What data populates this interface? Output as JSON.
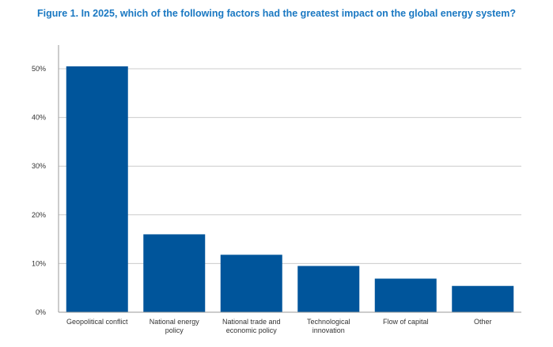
{
  "chart_data": {
    "type": "bar",
    "title": "Figure 1. In 2025, which of the following factors had the greatest impact on the global energy system?",
    "categories": [
      [
        "Geopolitical conflict"
      ],
      [
        "National energy",
        "policy"
      ],
      [
        "National trade and",
        "economic policy"
      ],
      [
        "Technological",
        "innovation"
      ],
      [
        "Flow of capital"
      ],
      [
        "Other"
      ]
    ],
    "values": [
      50.5,
      16,
      11.8,
      9.5,
      6.9,
      5.4
    ],
    "unit": "%",
    "ylim": [
      0,
      50
    ],
    "yticks": [
      0,
      10,
      20,
      30,
      40,
      50
    ],
    "ytick_labels": [
      "0%",
      "10%",
      "20%",
      "30%",
      "40%",
      "50%"
    ],
    "grid": true,
    "xlabel": "",
    "ylabel": ""
  },
  "colors": {
    "title": "#1a78c2",
    "bar": "#00559b",
    "grid": "#cccccc",
    "axis": "#999999"
  }
}
